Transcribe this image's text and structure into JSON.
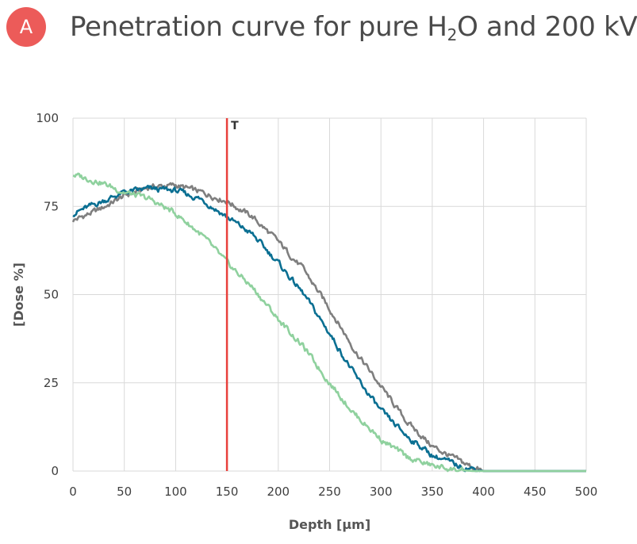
{
  "header": {
    "badge": "A",
    "title_before": "Penetration curve for pure H",
    "title_sub": "2",
    "title_after": "O and 200 kV"
  },
  "colors": {
    "badge": "#ec5b59",
    "marker": "#e8413c",
    "gray": "#7f7f7f",
    "teal": "#0a6f92",
    "green": "#8fd19e",
    "grid": "#d9d9d9"
  },
  "chart_data": {
    "type": "line",
    "title": "Penetration curve for pure H2O and 200 kV",
    "xlabel": "Depth [µm]",
    "ylabel": "[Dose %]",
    "xlim": [
      0,
      500
    ],
    "ylim": [
      0,
      100
    ],
    "xticks": [
      0,
      50,
      100,
      150,
      200,
      250,
      300,
      350,
      400,
      450,
      500
    ],
    "yticks": [
      0,
      25,
      50,
      75,
      100
    ],
    "grid": true,
    "legend": "none",
    "marker_line": {
      "x": 150,
      "label": "T"
    },
    "series": [
      {
        "color": "gray",
        "x": [
          0,
          25,
          50,
          75,
          100,
          125,
          150,
          175,
          200,
          225,
          250,
          275,
          300,
          325,
          350,
          375,
          390,
          400,
          500
        ],
        "y": [
          71,
          74,
          78,
          80.5,
          81,
          79,
          76.5,
          72,
          65,
          57,
          46,
          34,
          24,
          14,
          7,
          3,
          1,
          0,
          0
        ]
      },
      {
        "color": "teal",
        "x": [
          0,
          25,
          50,
          75,
          100,
          125,
          150,
          175,
          200,
          225,
          250,
          275,
          300,
          325,
          350,
          375,
          400,
          500
        ],
        "y": [
          73,
          76,
          79,
          80,
          79.5,
          77,
          72,
          67,
          59,
          50,
          39,
          27,
          17,
          10,
          4.5,
          1.5,
          0,
          0
        ]
      },
      {
        "color": "green",
        "x": [
          0,
          25,
          50,
          75,
          100,
          125,
          150,
          175,
          200,
          225,
          250,
          275,
          300,
          325,
          350,
          375,
          390,
          500
        ],
        "y": [
          84,
          82,
          79,
          77,
          73,
          67,
          59,
          52,
          43,
          35,
          25,
          16,
          9,
          4,
          1.5,
          0.3,
          0,
          0
        ]
      }
    ]
  }
}
